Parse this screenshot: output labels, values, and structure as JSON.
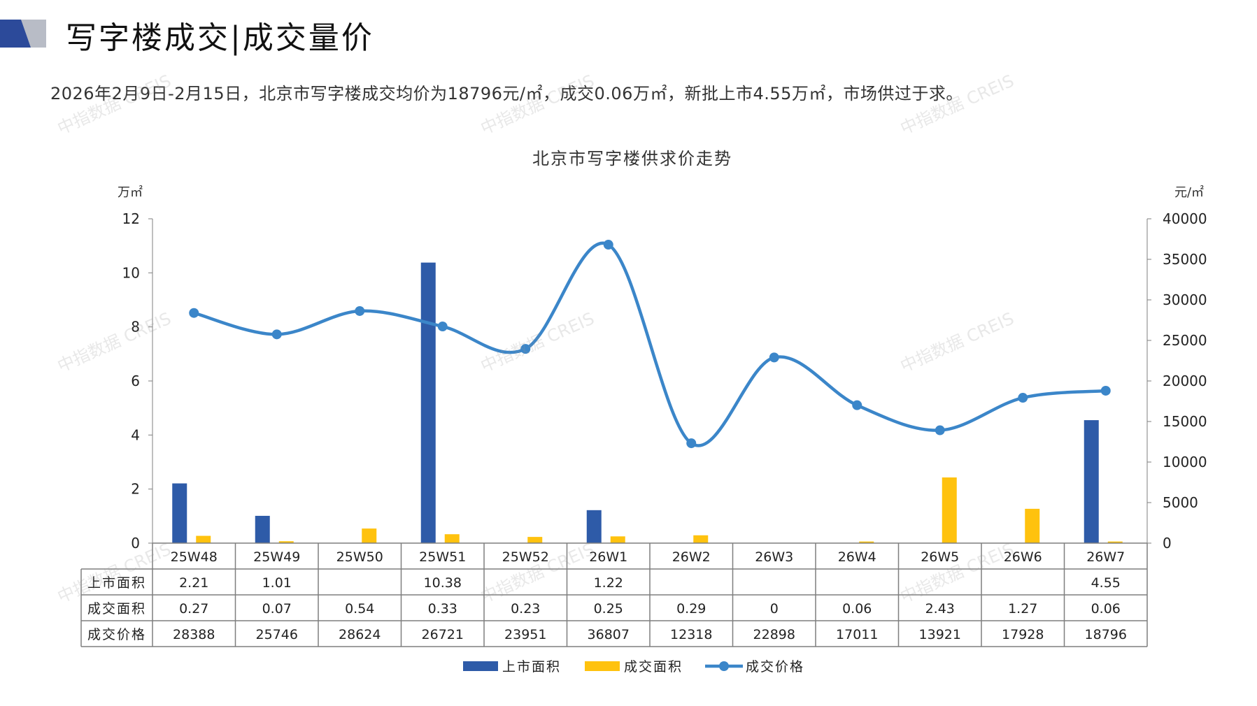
{
  "header": {
    "title": "写字楼成交|成交量价",
    "summary": "2026年2月9日-2月15日，北京市写字楼成交均价为18796元/㎡，成交0.06万㎡，新批上市4.55万㎡，市场供过于求。"
  },
  "watermark": "中指数据 CREIS",
  "colors": {
    "supply_bar": "#2E5BA8",
    "deal_bar": "#FFC20E",
    "price_line": "#3B86C9",
    "logo_dark": "#2C4A9A",
    "logo_light": "#B8BCC6"
  },
  "chart_data": {
    "type": "bar",
    "title": "北京市写字楼供求价走势",
    "y_left_unit": "万㎡",
    "y_right_unit": "元/㎡",
    "ylim_left": [
      0,
      12
    ],
    "yticks_left": [
      0,
      2,
      4,
      6,
      8,
      10,
      12
    ],
    "ylim_right": [
      0,
      40000
    ],
    "yticks_right": [
      0,
      5000,
      10000,
      15000,
      20000,
      25000,
      30000,
      35000,
      40000
    ],
    "categories": [
      "25W48",
      "25W49",
      "25W50",
      "25W51",
      "25W52",
      "26W1",
      "26W2",
      "26W3",
      "26W4",
      "26W5",
      "26W6",
      "26W7"
    ],
    "series": [
      {
        "name": "上市面积",
        "type": "bar",
        "axis": "left",
        "values": [
          2.21,
          1.01,
          null,
          10.38,
          null,
          1.22,
          null,
          null,
          null,
          null,
          null,
          4.55
        ],
        "labels": [
          "2.21",
          "1.01",
          "",
          "10.38",
          "",
          "1.22",
          "",
          "",
          "",
          "",
          "",
          "4.55"
        ]
      },
      {
        "name": "成交面积",
        "type": "bar",
        "axis": "left",
        "values": [
          0.27,
          0.07,
          0.54,
          0.33,
          0.23,
          0.25,
          0.29,
          0,
          0.06,
          2.43,
          1.27,
          0.06
        ],
        "labels": [
          "0.27",
          "0.07",
          "0.54",
          "0.33",
          "0.23",
          "0.25",
          "0.29",
          "0",
          "0.06",
          "2.43",
          "1.27",
          "0.06"
        ]
      },
      {
        "name": "成交价格",
        "type": "line",
        "axis": "right",
        "values": [
          28388,
          25746,
          28624,
          26721,
          23951,
          36807,
          12318,
          22898,
          17011,
          13921,
          17928,
          18796
        ],
        "labels": [
          "28388",
          "25746",
          "28624",
          "26721",
          "23951",
          "36807",
          "12318",
          "22898",
          "17011",
          "13921",
          "17928",
          "18796"
        ]
      }
    ],
    "legend_position": "bottom",
    "grid": false
  }
}
